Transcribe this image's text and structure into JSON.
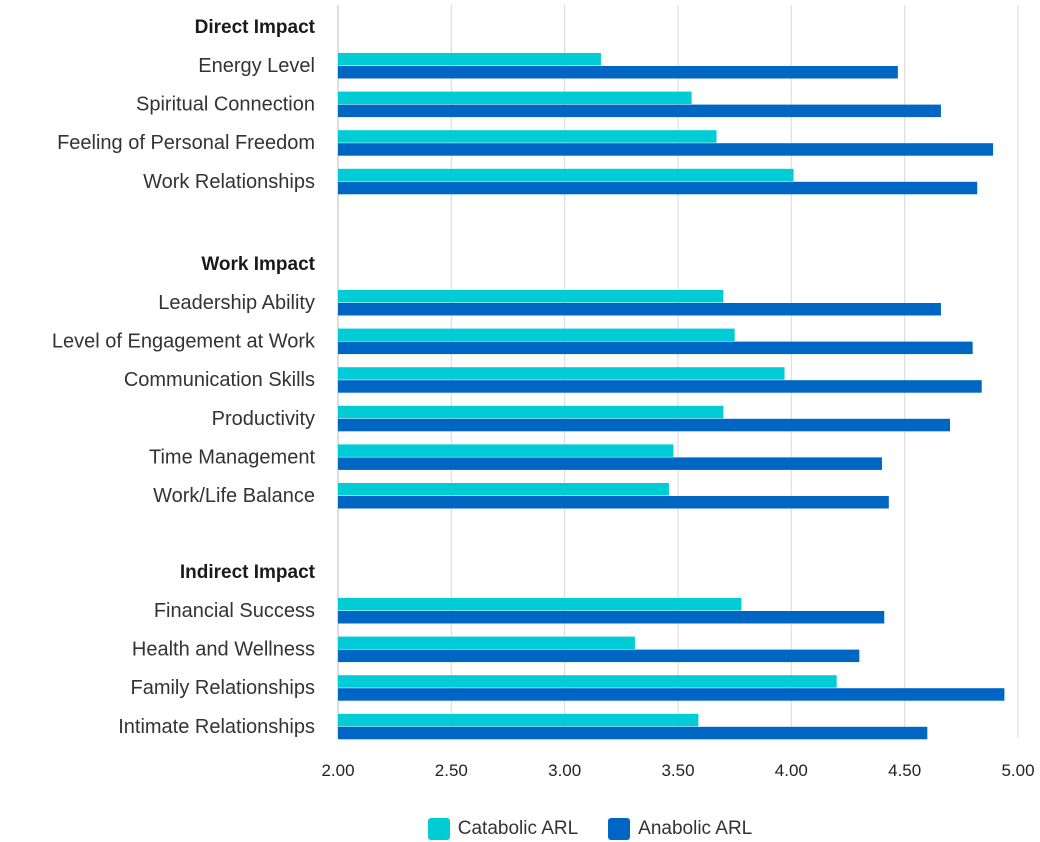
{
  "chart_data": {
    "type": "bar",
    "orientation": "horizontal",
    "xlim": [
      2.0,
      5.0
    ],
    "xticks": [
      "2.00",
      "2.50",
      "3.00",
      "3.50",
      "4.00",
      "4.50",
      "5.00"
    ],
    "grid": "vertical",
    "legend_position": "bottom",
    "series": [
      {
        "name": "Catabolic ARL",
        "color": "#00CCD6"
      },
      {
        "name": "Anabolic ARL",
        "color": "#0066C4"
      }
    ],
    "groups": [
      {
        "label": "Direct Impact",
        "items": [
          {
            "category": "Energy Level",
            "values": [
              3.16,
              4.47
            ]
          },
          {
            "category": "Spiritual Connection",
            "values": [
              3.56,
              4.66
            ]
          },
          {
            "category": "Feeling of Personal Freedom",
            "values": [
              3.67,
              4.89
            ]
          },
          {
            "category": "Work Relationships",
            "values": [
              4.01,
              4.82
            ]
          }
        ]
      },
      {
        "label": "Work Impact",
        "items": [
          {
            "category": "Leadership Ability",
            "values": [
              3.7,
              4.66
            ]
          },
          {
            "category": "Level of Engagement at Work",
            "values": [
              3.75,
              4.8
            ]
          },
          {
            "category": "Communication Skills",
            "values": [
              3.97,
              4.84
            ]
          },
          {
            "category": "Productivity",
            "values": [
              3.7,
              4.7
            ]
          },
          {
            "category": "Time Management",
            "values": [
              3.48,
              4.4
            ]
          },
          {
            "category": "Work/Life Balance",
            "values": [
              3.46,
              4.43
            ]
          }
        ]
      },
      {
        "label": "Indirect Impact",
        "items": [
          {
            "category": "Financial Success",
            "values": [
              3.78,
              4.41
            ]
          },
          {
            "category": "Health and Wellness",
            "values": [
              3.31,
              4.3
            ]
          },
          {
            "category": "Family Relationships",
            "values": [
              4.2,
              4.94
            ]
          },
          {
            "category": "Intimate Relationships",
            "values": [
              3.59,
              4.6
            ]
          }
        ]
      }
    ]
  }
}
